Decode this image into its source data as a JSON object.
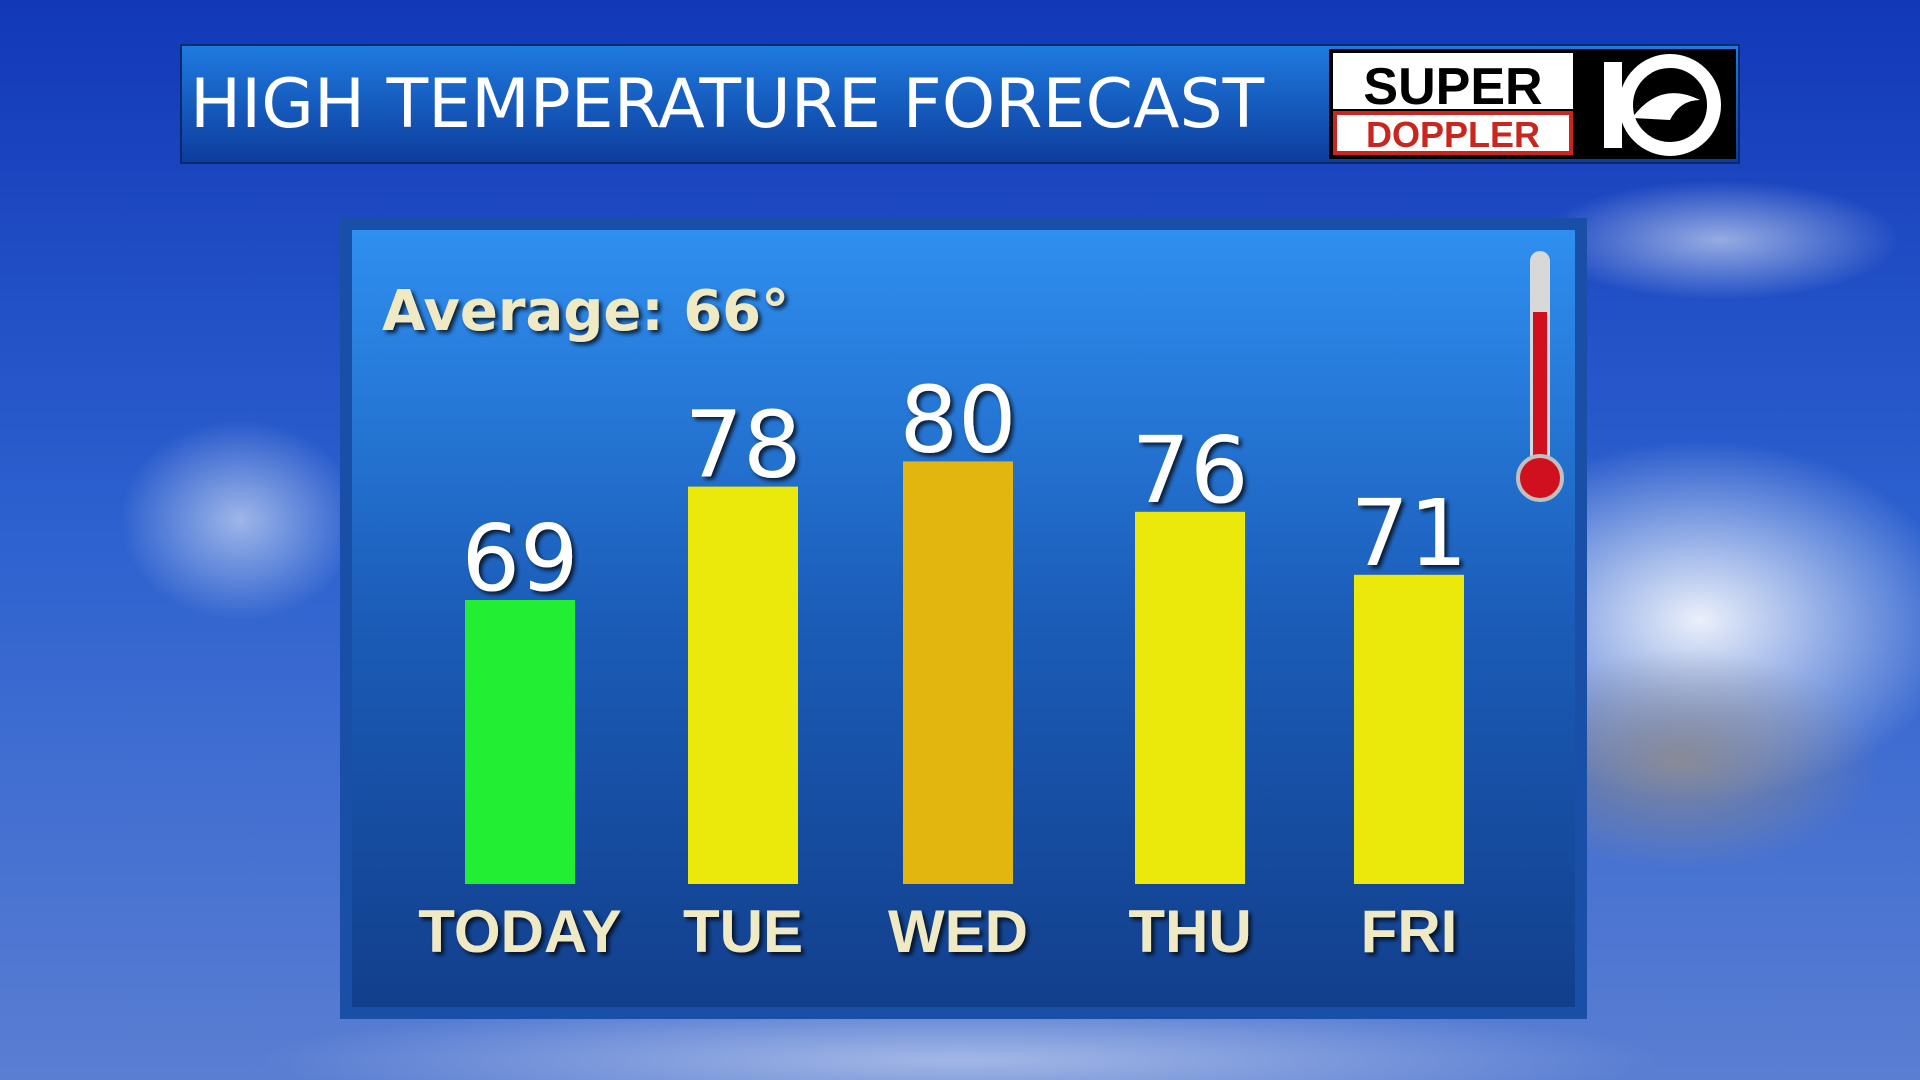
{
  "chart_data": {
    "type": "bar",
    "title": "HIGH TEMPERATURE FORECAST",
    "logo": [
      "SUPER",
      "DOPPLER"
    ],
    "annotation": "Average: 66°",
    "categories": [
      "TODAY",
      "TUE",
      "WED",
      "THU",
      "FRI"
    ],
    "values": [
      69,
      78,
      80,
      76,
      71
    ],
    "colors": [
      "#22ee33",
      "#ebe80c",
      "#e2b60e",
      "#ebe80c",
      "#ebe80c"
    ]
  }
}
